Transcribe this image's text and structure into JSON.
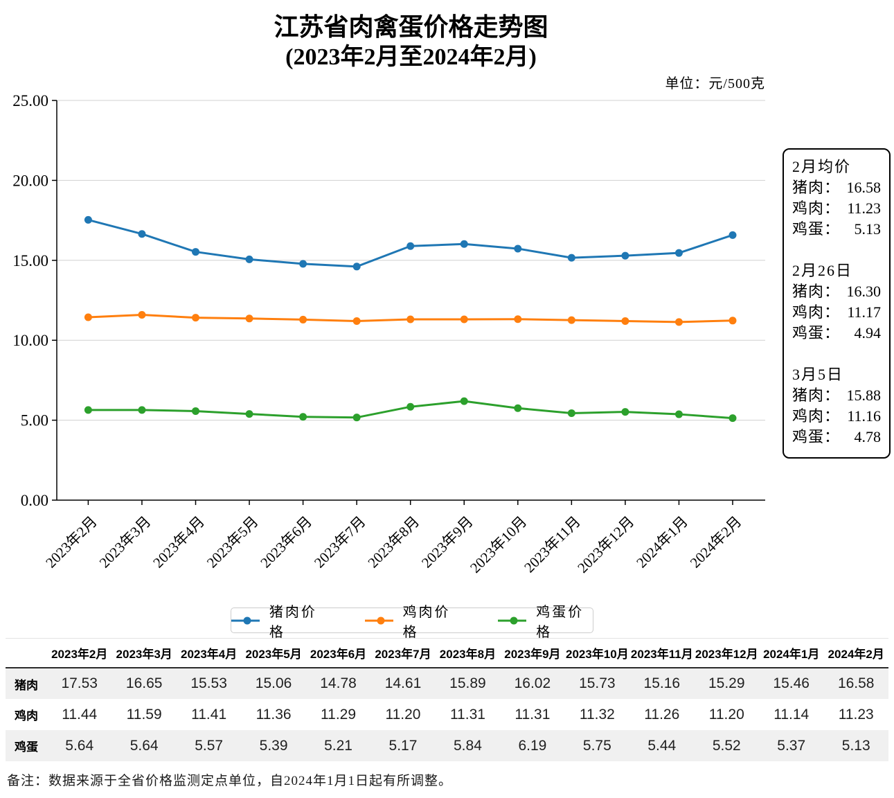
{
  "title": {
    "line1": "江苏省肉禽蛋价格走势图",
    "line2": "(2023年2月至2024年2月)"
  },
  "unit_label": "单位：元/500克",
  "colors": {
    "pork": "#1f77b4",
    "chicken": "#ff7f0e",
    "egg": "#2ca02c",
    "grid": "#d0d0d0",
    "axis": "#000000"
  },
  "chart_data": {
    "type": "line",
    "title": "江苏省肉禽蛋价格走势图 (2023年2月至2024年2月)",
    "xlabel": "",
    "ylabel": "元/500克",
    "ylim": [
      0,
      25
    ],
    "grid": true,
    "legend_position": "bottom",
    "categories": [
      "2023年2月",
      "2023年3月",
      "2023年4月",
      "2023年5月",
      "2023年6月",
      "2023年7月",
      "2023年8月",
      "2023年9月",
      "2023年10月",
      "2023年11月",
      "2023年12月",
      "2024年1月",
      "2024年2月"
    ],
    "yticks": [
      {
        "value": 0,
        "label": "0.00"
      },
      {
        "value": 5,
        "label": "5.00"
      },
      {
        "value": 10,
        "label": "10.00"
      },
      {
        "value": 15,
        "label": "15.00"
      },
      {
        "value": 20,
        "label": "20.00"
      },
      {
        "value": 25,
        "label": "25.00"
      }
    ],
    "series": [
      {
        "id": "pork",
        "name": "猪肉价格",
        "color": "#1f77b4",
        "values": [
          17.53,
          16.65,
          15.53,
          15.06,
          14.78,
          14.61,
          15.89,
          16.02,
          15.73,
          15.16,
          15.29,
          15.46,
          16.58
        ]
      },
      {
        "id": "chicken",
        "name": "鸡肉价格",
        "color": "#ff7f0e",
        "values": [
          11.44,
          11.59,
          11.41,
          11.36,
          11.29,
          11.2,
          11.31,
          11.31,
          11.32,
          11.26,
          11.2,
          11.14,
          11.23
        ]
      },
      {
        "id": "egg",
        "name": "鸡蛋价格",
        "color": "#2ca02c",
        "values": [
          5.64,
          5.64,
          5.57,
          5.39,
          5.21,
          5.17,
          5.84,
          6.19,
          5.75,
          5.44,
          5.52,
          5.37,
          5.13
        ]
      }
    ]
  },
  "info_box": {
    "sections": [
      {
        "heading": "2月均价",
        "rows": [
          {
            "label": "猪肉：",
            "value": "16.58"
          },
          {
            "label": "鸡肉：",
            "value": "11.23"
          },
          {
            "label": "鸡蛋：",
            "value": "5.13"
          }
        ]
      },
      {
        "heading": "2月26日",
        "rows": [
          {
            "label": "猪肉：",
            "value": "16.30"
          },
          {
            "label": "鸡肉：",
            "value": "11.17"
          },
          {
            "label": "鸡蛋：",
            "value": "4.94"
          }
        ]
      },
      {
        "heading": "3月5日",
        "rows": [
          {
            "label": "猪肉：",
            "value": "15.88"
          },
          {
            "label": "鸡肉：",
            "value": "11.16"
          },
          {
            "label": "鸡蛋：",
            "value": "4.78"
          }
        ]
      }
    ]
  },
  "table": {
    "corner": "",
    "columns": [
      "2023年2月",
      "2023年3月",
      "2023年4月",
      "2023年5月",
      "2023年6月",
      "2023年7月",
      "2023年8月",
      "2023年9月",
      "2023年10月",
      "2023年11月",
      "2023年12月",
      "2024年1月",
      "2024年2月"
    ],
    "rows": [
      {
        "label": "猪肉",
        "values": [
          "17.53",
          "16.65",
          "15.53",
          "15.06",
          "14.78",
          "14.61",
          "15.89",
          "16.02",
          "15.73",
          "15.16",
          "15.29",
          "15.46",
          "16.58"
        ]
      },
      {
        "label": "鸡肉",
        "values": [
          "11.44",
          "11.59",
          "11.41",
          "11.36",
          "11.29",
          "11.20",
          "11.31",
          "11.31",
          "11.32",
          "11.26",
          "11.20",
          "11.14",
          "11.23"
        ]
      },
      {
        "label": "鸡蛋",
        "values": [
          "5.64",
          "5.64",
          "5.57",
          "5.39",
          "5.21",
          "5.17",
          "5.84",
          "6.19",
          "5.75",
          "5.44",
          "5.52",
          "5.37",
          "5.13"
        ]
      }
    ]
  },
  "note": "备注：数据来源于全省价格监测定点单位，自2024年1月1日起有所调整。"
}
